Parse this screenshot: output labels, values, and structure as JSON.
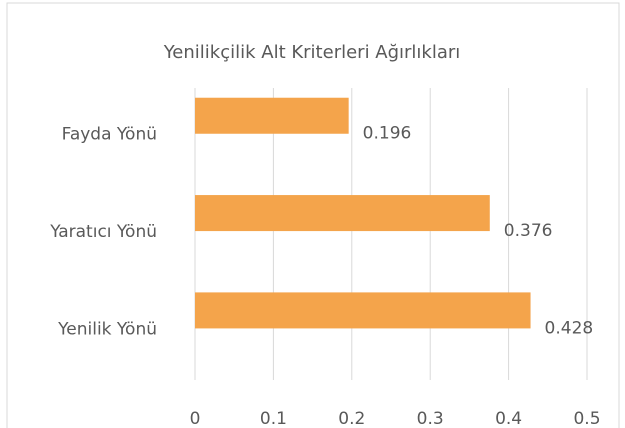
{
  "chart_data": {
    "type": "bar",
    "orientation": "horizontal",
    "title": "Yenilikçilik Alt Kriterleri Ağırlıkları",
    "categories": [
      "Fayda Yönü",
      "Yaratıcı Yönü",
      "Yenilik Yönü"
    ],
    "values": [
      0.196,
      0.376,
      0.428
    ],
    "color": "#f4a44b",
    "xlim": [
      0,
      0.5
    ],
    "xticks": [
      0,
      0.1,
      0.2,
      0.3,
      0.4,
      0.5
    ],
    "grid": true
  }
}
